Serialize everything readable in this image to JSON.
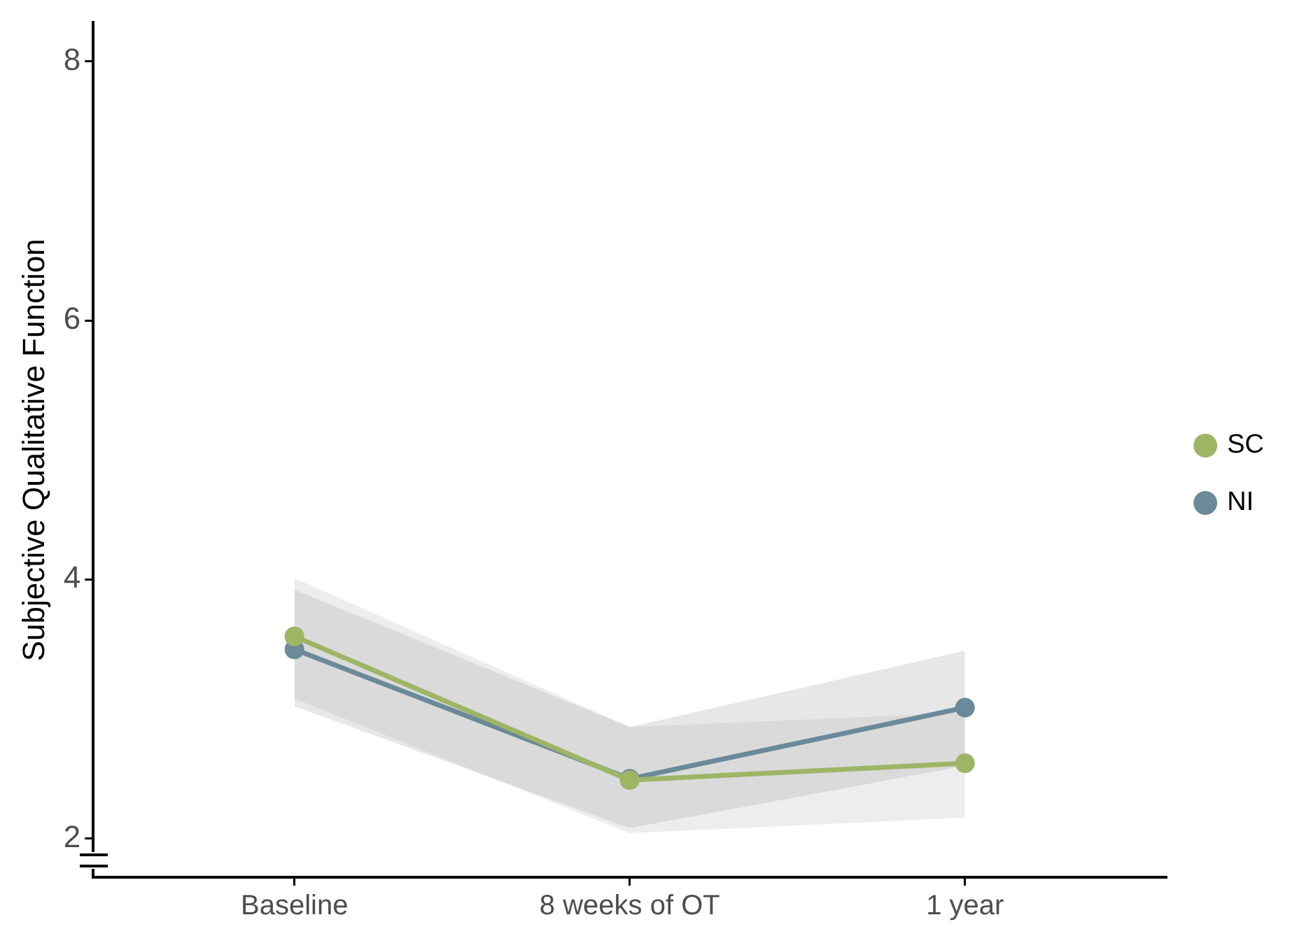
{
  "chart_data": {
    "type": "line",
    "ylabel": "Subjective Qualitative Function",
    "categories": [
      "Baseline",
      "8 weeks of OT",
      "1 year"
    ],
    "series": [
      {
        "name": "NI",
        "color": "#6a8a99",
        "values": [
          3.46,
          2.46,
          3.01
        ],
        "lower": [
          3.02,
          2.08,
          2.56
        ],
        "upper": [
          3.92,
          2.86,
          3.45
        ]
      },
      {
        "name": "SC",
        "color": "#9db565",
        "values": [
          3.56,
          2.45,
          2.58
        ],
        "lower": [
          3.08,
          2.04,
          2.16
        ],
        "upper": [
          4.01,
          2.86,
          2.97
        ]
      }
    ],
    "ylim": [
      1.7,
      8.3
    ],
    "yticks": [
      2,
      4,
      6,
      8
    ],
    "grid": false,
    "legend": "right",
    "marker": "circle",
    "line_style": "solid"
  }
}
